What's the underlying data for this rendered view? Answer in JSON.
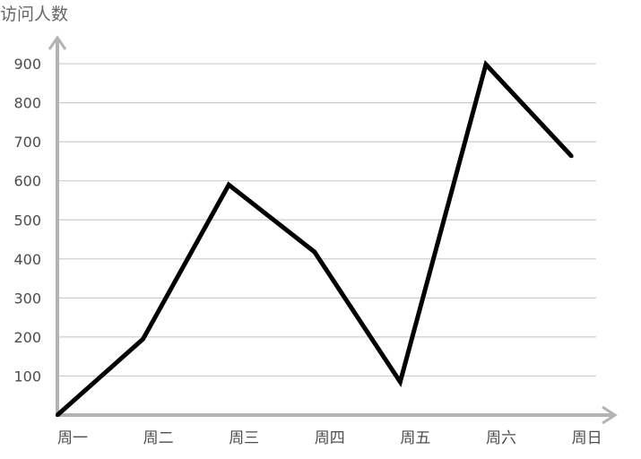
{
  "chart_data": {
    "type": "line",
    "ylabel": "访问人数",
    "categories": [
      "周一",
      "周二",
      "周三",
      "周四",
      "周五",
      "周六",
      "周日"
    ],
    "series": [
      {
        "values": [
          0,
          195,
          590,
          418,
          85,
          898,
          663
        ]
      }
    ],
    "yticks": [
      "100",
      "200",
      "300",
      "400",
      "500",
      "600",
      "700",
      "800",
      "900"
    ],
    "ylim": [
      0,
      900
    ],
    "grid": true,
    "legend": "none",
    "colors": {
      "line": "#000000",
      "axis": "#b3b3b3",
      "grid": "#cccccc",
      "label": "#4d4d4d",
      "title": "#666666"
    }
  }
}
